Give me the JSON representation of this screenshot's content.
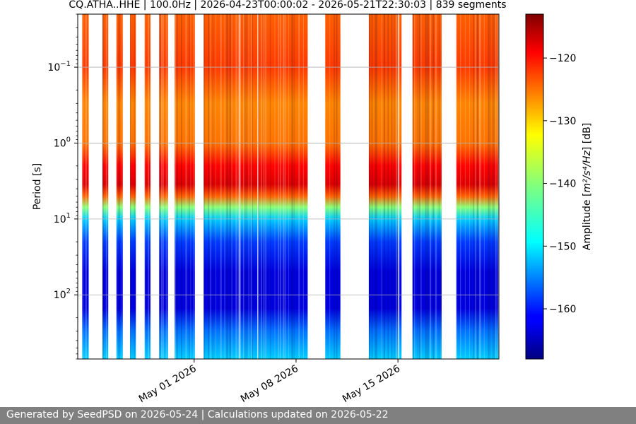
{
  "chart_data": {
    "type": "heatmap",
    "title": "CQ.ATHA..HHE | 100.0Hz | 2026-04-23T00:00:02 - 2026-05-21T22:30:03 | 839 segments",
    "ylabel": "Period [s]",
    "yscale": "log",
    "yaxis_inverted": true,
    "ylim": [
      0.02,
      700
    ],
    "y_ticks": [
      {
        "value": 0.1,
        "base": "10",
        "exp": "−1"
      },
      {
        "value": 1,
        "base": "10",
        "exp": "0"
      },
      {
        "value": 10,
        "base": "10",
        "exp": "1"
      },
      {
        "value": 100,
        "base": "10",
        "exp": "2"
      }
    ],
    "xlim": [
      "2026-04-23",
      "2026-05-21T22:30"
    ],
    "x_ticks": [
      "May 01 2026",
      "May 08 2026",
      "May 15 2026"
    ],
    "grid": true,
    "colormap": "jet",
    "colorbar": {
      "label_prefix": "Amplitude [",
      "label_unit": "m²/s⁴/Hz",
      "label_suffix": "] [dB]",
      "min": -168,
      "max": -113,
      "ticks": [
        "−120",
        "−130",
        "−140",
        "−150",
        "−160"
      ]
    },
    "data_coverage_days": [
      [
        0.3,
        0.75
      ],
      [
        1.7,
        2.1
      ],
      [
        2.65,
        3.1
      ],
      [
        3.6,
        4.0
      ],
      [
        4.6,
        5.0
      ],
      [
        5.6,
        6.2
      ],
      [
        6.65,
        8.05
      ],
      [
        8.65,
        11.1
      ],
      [
        11.15,
        12.35
      ],
      [
        12.4,
        15.8
      ],
      [
        17.0,
        18.05
      ],
      [
        20.0,
        22.0
      ],
      [
        22.05,
        22.25
      ],
      [
        23.0,
        25.0
      ],
      [
        26.0,
        28.9
      ]
    ],
    "spectrum_profile_db": [
      {
        "period": 0.02,
        "db": -125
      },
      {
        "period": 0.1,
        "db": -123
      },
      {
        "period": 0.3,
        "db": -127
      },
      {
        "period": 1,
        "db": -126
      },
      {
        "period": 2,
        "db": -120
      },
      {
        "period": 3.5,
        "db": -118
      },
      {
        "period": 5,
        "db": -125
      },
      {
        "period": 7,
        "db": -140
      },
      {
        "period": 10,
        "db": -150
      },
      {
        "period": 20,
        "db": -158
      },
      {
        "period": 50,
        "db": -163
      },
      {
        "period": 150,
        "db": -163
      },
      {
        "period": 300,
        "db": -155
      },
      {
        "period": 700,
        "db": -150
      }
    ]
  },
  "footer": {
    "text": "Generated by SeedPSD on 2026-05-24 | Calculations updated on 2026-05-22"
  }
}
